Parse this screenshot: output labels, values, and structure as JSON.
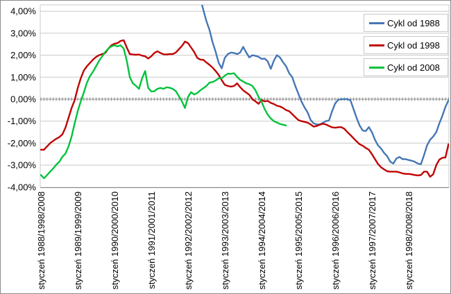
{
  "chart_data": {
    "type": "line",
    "title": "",
    "xlabel": "",
    "ylabel": "",
    "grid": true,
    "y_axis": {
      "min": -4,
      "max": 4,
      "step": 1,
      "tick_labels": [
        "4,00%",
        "3,00%",
        "2,00%",
        "1,00%",
        "0,00%",
        "-1,00%",
        "-2,00%",
        "-3,00%",
        "-4,00%"
      ],
      "format": "percent, comma decimal"
    },
    "x_axis": {
      "tick_labels": [
        "styczeń 1988/1998/2008",
        "styczeń 1989/1999/2009",
        "styczeń 1990/2000/2010",
        "styczeń 1991/2001/2011",
        "styczeń 1992/2002/2012",
        "styczeń 1993/2003/2013",
        "styczeń 1994/2004/2014",
        "styczeń 1995/2005/2015",
        "styczeń 1996/2006/2016",
        "styczeń 1997/2007/2017",
        "styczeń 1998/2008/2018"
      ],
      "months_per_tick": 12,
      "total_months": 134,
      "minor_ticks": "monthly on zero line"
    },
    "legend": {
      "position": "top-right",
      "boxed": true
    },
    "series": [
      {
        "name": "Cykl od 1988",
        "color": "#4576B5",
        "start_month": 52,
        "values": [
          4.6,
          4.05,
          3.55,
          3.15,
          2.6,
          2.15,
          1.65,
          1.4,
          1.88,
          2.05,
          2.12,
          2.1,
          2.05,
          2.12,
          2.38,
          2.12,
          1.9,
          2.0,
          1.97,
          1.93,
          1.83,
          1.85,
          1.72,
          1.38,
          1.75,
          2.0,
          1.9,
          1.68,
          1.5,
          1.18,
          1.0,
          0.6,
          0.25,
          -0.1,
          -0.37,
          -0.6,
          -0.95,
          -1.1,
          -1.15,
          -1.15,
          -1.08,
          -1.0,
          -0.97,
          -0.55,
          -0.2,
          -0.03,
          0.0,
          0.0,
          0.0,
          -0.05,
          -0.45,
          -0.85,
          -1.2,
          -1.43,
          -1.45,
          -1.27,
          -1.5,
          -1.85,
          -2.1,
          -2.25,
          -2.45,
          -2.6,
          -2.85,
          -2.93,
          -2.7,
          -2.63,
          -2.73,
          -2.73,
          -2.77,
          -2.8,
          -2.85,
          -2.93,
          -2.96,
          -2.55,
          -2.1,
          -1.85,
          -1.7,
          -1.5,
          -1.1,
          -0.75,
          -0.35,
          -0.05
        ]
      },
      {
        "name": "Cykl od 1998",
        "color": "#C00000",
        "start_month": 0,
        "values": [
          -2.3,
          -2.3,
          -2.15,
          -2.0,
          -1.9,
          -1.8,
          -1.73,
          -1.6,
          -1.3,
          -0.85,
          -0.4,
          -0.05,
          0.5,
          0.95,
          1.3,
          1.5,
          1.65,
          1.8,
          1.92,
          2.0,
          2.05,
          2.1,
          2.3,
          2.45,
          2.52,
          2.55,
          2.65,
          2.68,
          2.35,
          2.05,
          2.03,
          2.02,
          2.03,
          1.98,
          1.95,
          1.85,
          1.95,
          2.1,
          2.18,
          2.1,
          2.04,
          2.03,
          2.05,
          2.05,
          2.12,
          2.27,
          2.42,
          2.62,
          2.55,
          2.35,
          2.15,
          1.88,
          1.8,
          1.79,
          1.67,
          1.56,
          1.44,
          1.28,
          1.1,
          0.86,
          0.65,
          0.6,
          0.57,
          0.6,
          0.72,
          0.55,
          0.4,
          0.3,
          0.2,
          0.0,
          -0.1,
          -0.21,
          -0.04,
          -0.1,
          -0.08,
          -0.17,
          -0.22,
          -0.3,
          -0.33,
          -0.4,
          -0.5,
          -0.55,
          -0.68,
          -0.82,
          -0.95,
          -1.0,
          -1.03,
          -1.07,
          -1.15,
          -1.25,
          -1.22,
          -1.16,
          -1.12,
          -1.15,
          -1.22,
          -1.28,
          -1.3,
          -1.28,
          -1.27,
          -1.35,
          -1.5,
          -1.63,
          -1.78,
          -1.92,
          -2.05,
          -2.12,
          -2.22,
          -2.3,
          -2.5,
          -2.73,
          -2.95,
          -3.1,
          -3.2,
          -3.28,
          -3.3,
          -3.3,
          -3.3,
          -3.33,
          -3.38,
          -3.4,
          -3.4,
          -3.42,
          -3.45,
          -3.47,
          -3.45,
          -3.3,
          -3.3,
          -3.53,
          -3.42,
          -3.0,
          -2.75,
          -2.67,
          -2.65,
          -2.05
        ]
      },
      {
        "name": "Cykl od 2008",
        "color": "#00C23C",
        "start_month": 0,
        "values": [
          -3.45,
          -3.6,
          -3.45,
          -3.3,
          -3.15,
          -2.98,
          -2.85,
          -2.62,
          -2.48,
          -2.15,
          -1.7,
          -1.1,
          -0.55,
          -0.1,
          0.3,
          0.75,
          1.05,
          1.25,
          1.5,
          1.75,
          1.95,
          2.15,
          2.3,
          2.4,
          2.45,
          2.4,
          2.45,
          2.3,
          1.75,
          1.0,
          0.72,
          0.61,
          0.47,
          0.95,
          1.28,
          0.51,
          0.35,
          0.36,
          0.47,
          0.51,
          0.47,
          0.54,
          0.52,
          0.47,
          0.37,
          0.14,
          -0.1,
          -0.4,
          0.1,
          0.32,
          0.21,
          0.28,
          0.4,
          0.5,
          0.6,
          0.75,
          0.78,
          0.85,
          0.95,
          0.95,
          1.07,
          1.16,
          1.15,
          1.18,
          1.02,
          0.88,
          0.8,
          0.72,
          0.68,
          0.6,
          0.4,
          0.1,
          -0.12,
          -0.45,
          -0.7,
          -0.88,
          -1.0,
          -1.06,
          -1.13,
          -1.16,
          -1.2
        ]
      }
    ]
  },
  "style": {
    "gridline_color": "#c9c9c9",
    "axis_color": "#8c8c8c",
    "plot_border_color": "#c9c9c9",
    "text_color": "#000000",
    "background": "#ffffff"
  }
}
